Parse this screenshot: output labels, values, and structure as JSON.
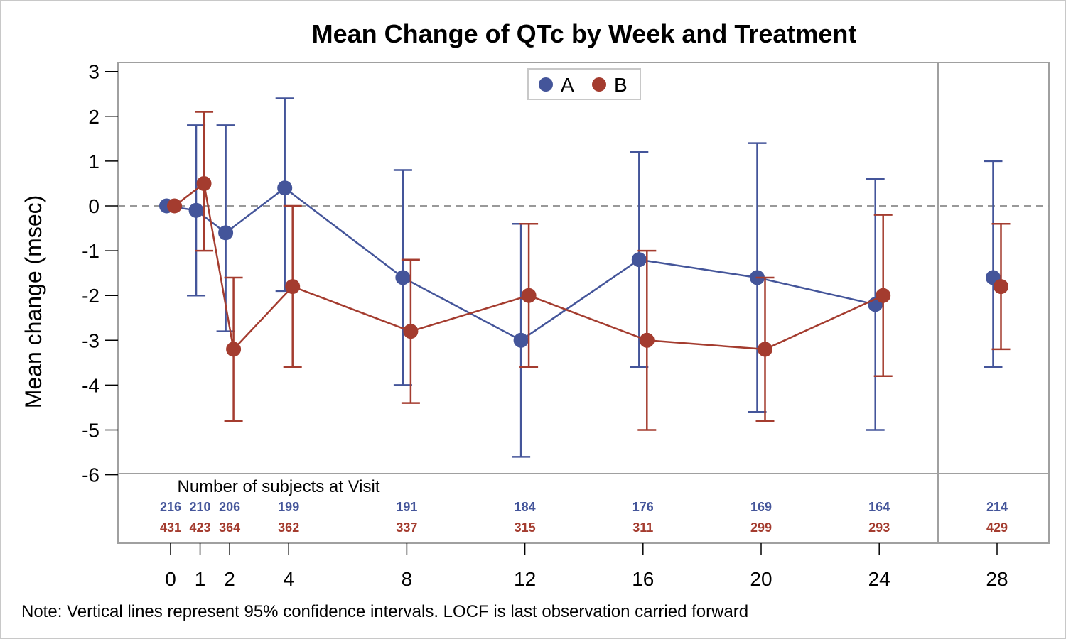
{
  "chart_data": {
    "type": "line",
    "title": "Mean Change of QTc by Week and Treatment",
    "ylabel": "Mean change (msec)",
    "xlabel": "",
    "ylim": [
      -6,
      3
    ],
    "yticks": [
      "3",
      "2",
      "1",
      "0",
      "-1",
      "-2",
      "-3",
      "-4",
      "-5",
      "-6"
    ],
    "x_categories": [
      "0",
      "1",
      "2",
      "4",
      "8",
      "12",
      "16",
      "20",
      "24",
      "28"
    ],
    "reference_line": {
      "y": 0,
      "style": "dashed"
    },
    "legend": {
      "placement": "top-center",
      "entries": [
        "A",
        "B"
      ]
    },
    "series": [
      {
        "name": "A",
        "color": "#44559a",
        "x": [
          0,
          1,
          2,
          4,
          8,
          12,
          16,
          20,
          24,
          28
        ],
        "mean": [
          0,
          -0.1,
          -0.6,
          0.4,
          -1.6,
          -3.0,
          -1.2,
          -1.6,
          -2.2,
          -1.6
        ],
        "ci_lower": [
          0,
          -2.0,
          -2.8,
          -1.9,
          -4.0,
          -5.6,
          -3.6,
          -4.6,
          -5.0,
          -3.6
        ],
        "ci_upper": [
          0,
          1.8,
          1.8,
          2.4,
          0.8,
          -0.4,
          1.2,
          1.4,
          0.6,
          1.0
        ],
        "n_subjects": [
          "216",
          "210",
          "206",
          "199",
          "191",
          "184",
          "176",
          "169",
          "164",
          "214"
        ]
      },
      {
        "name": "B",
        "color": "#a43c2f",
        "x": [
          0,
          1,
          2,
          4,
          8,
          12,
          16,
          20,
          24,
          28
        ],
        "mean": [
          0,
          0.5,
          -3.2,
          -1.8,
          -2.8,
          -2.0,
          -3.0,
          -3.2,
          -2.0,
          -1.8
        ],
        "ci_lower": [
          0,
          -1.0,
          -4.8,
          -3.6,
          -4.4,
          -3.6,
          -5.0,
          -4.8,
          -3.8,
          -3.2
        ],
        "ci_upper": [
          0,
          2.1,
          -1.6,
          0.0,
          -1.2,
          -0.4,
          -1.0,
          -1.6,
          -0.2,
          -0.4
        ],
        "n_subjects": [
          "431",
          "423",
          "364",
          "362",
          "337",
          "315",
          "311",
          "299",
          "293",
          "429"
        ]
      }
    ],
    "subjects_table_label": "Number of subjects at Visit"
  },
  "footnote": "Note: Vertical lines represent 95% confidence intervals.  LOCF is last observation carried forward"
}
